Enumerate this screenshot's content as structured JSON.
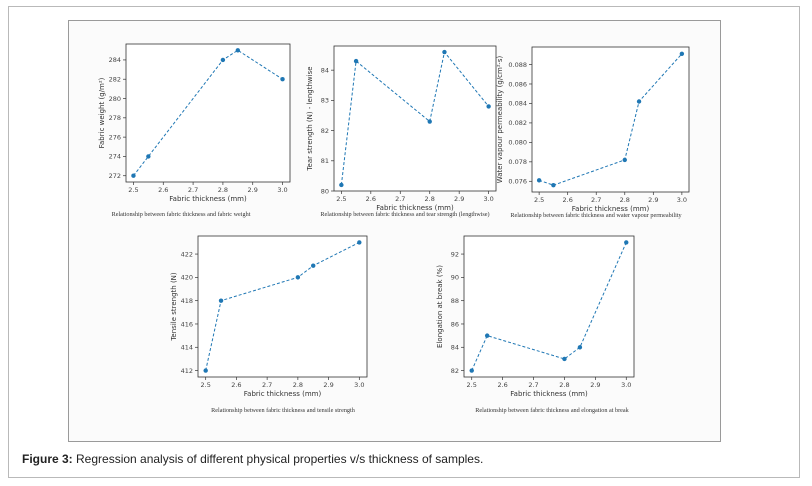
{
  "caption": {
    "label": "Figure 3:",
    "text": " Regression analysis of different physical properties v/s thickness of samples."
  },
  "colors": {
    "series": "#1f77b4",
    "axis": "#333333"
  },
  "chart_data": [
    {
      "type": "line",
      "id": "weight",
      "x": [
        2.5,
        2.55,
        2.8,
        2.85,
        3.0
      ],
      "y": [
        272,
        274,
        284,
        285,
        282
      ],
      "xlabel": "Fabric thickness (mm)",
      "ylabel": "Fabric weight (g/m²)",
      "subtitle": "Relationship between fabric thickness and fabric weight",
      "xlim": [
        2.475,
        3.025
      ],
      "ylim": [
        271.35,
        285.65
      ],
      "xticks": [
        2.5,
        2.6,
        2.7,
        2.8,
        2.9,
        3.0
      ],
      "xtick_labels": [
        "2.5",
        "2.6",
        "2.7",
        "2.8",
        "2.9",
        "3.0"
      ],
      "yticks": [
        272,
        274,
        276,
        278,
        280,
        282,
        284
      ],
      "ytick_labels": [
        "272",
        "274",
        "276",
        "278",
        "280",
        "282",
        "284"
      ]
    },
    {
      "type": "line",
      "id": "tear",
      "x": [
        2.5,
        2.55,
        2.8,
        2.85,
        3.0
      ],
      "y": [
        80.2,
        84.3,
        82.3,
        84.6,
        82.8
      ],
      "xlabel": "Fabric thickness (mm)",
      "ylabel": "Tear strength (N) - lengthwise",
      "subtitle": "Relationship between fabric thickness and tear strength (lengthwise)",
      "xlim": [
        2.475,
        3.025
      ],
      "ylim": [
        80.0,
        84.8
      ],
      "xticks": [
        2.5,
        2.6,
        2.7,
        2.8,
        2.9,
        3.0
      ],
      "xtick_labels": [
        "2.5",
        "2.6",
        "2.7",
        "2.8",
        "2.9",
        "3.0"
      ],
      "yticks": [
        80,
        81,
        82,
        83,
        84
      ],
      "ytick_labels": [
        "80",
        "81",
        "82",
        "83",
        "84"
      ]
    },
    {
      "type": "line",
      "id": "wvp",
      "x": [
        2.5,
        2.55,
        2.8,
        2.85,
        3.0
      ],
      "y": [
        0.0761,
        0.0756,
        0.0782,
        0.0842,
        0.0891
      ],
      "xlabel": "Fabric thickness (mm)",
      "ylabel": "Water vapour permeability (g/cm²·s)",
      "subtitle": "Relationship between fabric thickness and water vapour permeability",
      "xlim": [
        2.475,
        3.025
      ],
      "ylim": [
        0.0749,
        0.0898
      ],
      "xticks": [
        2.5,
        2.6,
        2.7,
        2.8,
        2.9,
        3.0
      ],
      "xtick_labels": [
        "2.5",
        "2.6",
        "2.7",
        "2.8",
        "2.9",
        "3.0"
      ],
      "yticks": [
        0.076,
        0.078,
        0.08,
        0.082,
        0.084,
        0.086,
        0.088
      ],
      "ytick_labels": [
        "0.076",
        "0.078",
        "0.080",
        "0.082",
        "0.084",
        "0.086",
        "0.088"
      ]
    },
    {
      "type": "line",
      "id": "tensile",
      "x": [
        2.5,
        2.55,
        2.8,
        2.85,
        3.0
      ],
      "y": [
        412,
        418,
        420,
        421,
        423
      ],
      "xlabel": "Fabric thickness (mm)",
      "ylabel": "Tensile strength (N)",
      "subtitle": "Relationship between fabric thickness and tensile strength",
      "xlim": [
        2.475,
        3.025
      ],
      "ylim": [
        411.45,
        423.55
      ],
      "xticks": [
        2.5,
        2.6,
        2.7,
        2.8,
        2.9,
        3.0
      ],
      "xtick_labels": [
        "2.5",
        "2.6",
        "2.7",
        "2.8",
        "2.9",
        "3.0"
      ],
      "yticks": [
        412,
        414,
        416,
        418,
        420,
        422
      ],
      "ytick_labels": [
        "412",
        "414",
        "416",
        "418",
        "420",
        "422"
      ]
    },
    {
      "type": "line",
      "id": "elongation",
      "x": [
        2.5,
        2.55,
        2.8,
        2.85,
        3.0
      ],
      "y": [
        82,
        85,
        83,
        84,
        93
      ],
      "xlabel": "Fabric thickness (mm)",
      "ylabel": "Elongation at break (%)",
      "subtitle": "Relationship between fabric thickness and elongation at break",
      "xlim": [
        2.475,
        3.025
      ],
      "ylim": [
        81.45,
        93.55
      ],
      "xticks": [
        2.5,
        2.6,
        2.7,
        2.8,
        2.9,
        3.0
      ],
      "xtick_labels": [
        "2.5",
        "2.6",
        "2.7",
        "2.8",
        "2.9",
        "3.0"
      ],
      "yticks": [
        82,
        84,
        86,
        88,
        90,
        92
      ],
      "ytick_labels": [
        "82",
        "84",
        "86",
        "88",
        "90",
        "92"
      ]
    }
  ]
}
